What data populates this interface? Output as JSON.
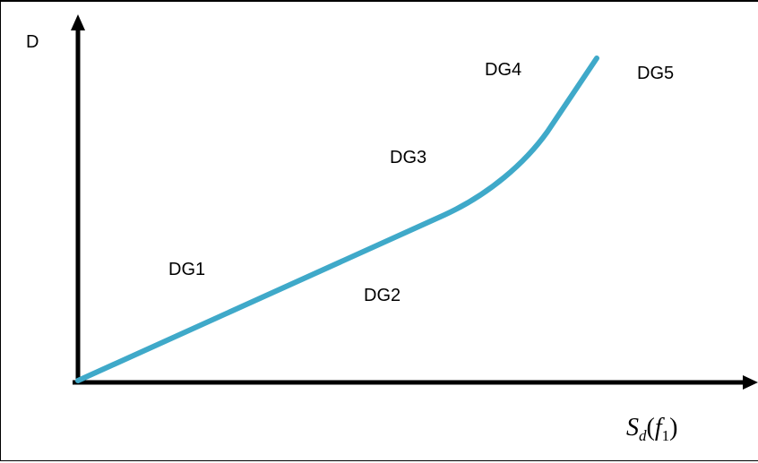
{
  "diagram": {
    "y_axis_label": "D",
    "x_axis_label": {
      "base": "S",
      "sub": "d",
      "open": "(",
      "arg": "f",
      "arg_sub": "1",
      "close": ")"
    },
    "regions": [
      {
        "id": "dg1",
        "label": "DG1"
      },
      {
        "id": "dg2",
        "label": "DG2"
      },
      {
        "id": "dg3",
        "label": "DG3"
      },
      {
        "id": "dg4",
        "label": "DG4"
      },
      {
        "id": "dg5",
        "label": "DG5"
      }
    ],
    "colors": {
      "curve": "#3fa9c9",
      "axes": "#000000",
      "text": "#000000"
    }
  }
}
